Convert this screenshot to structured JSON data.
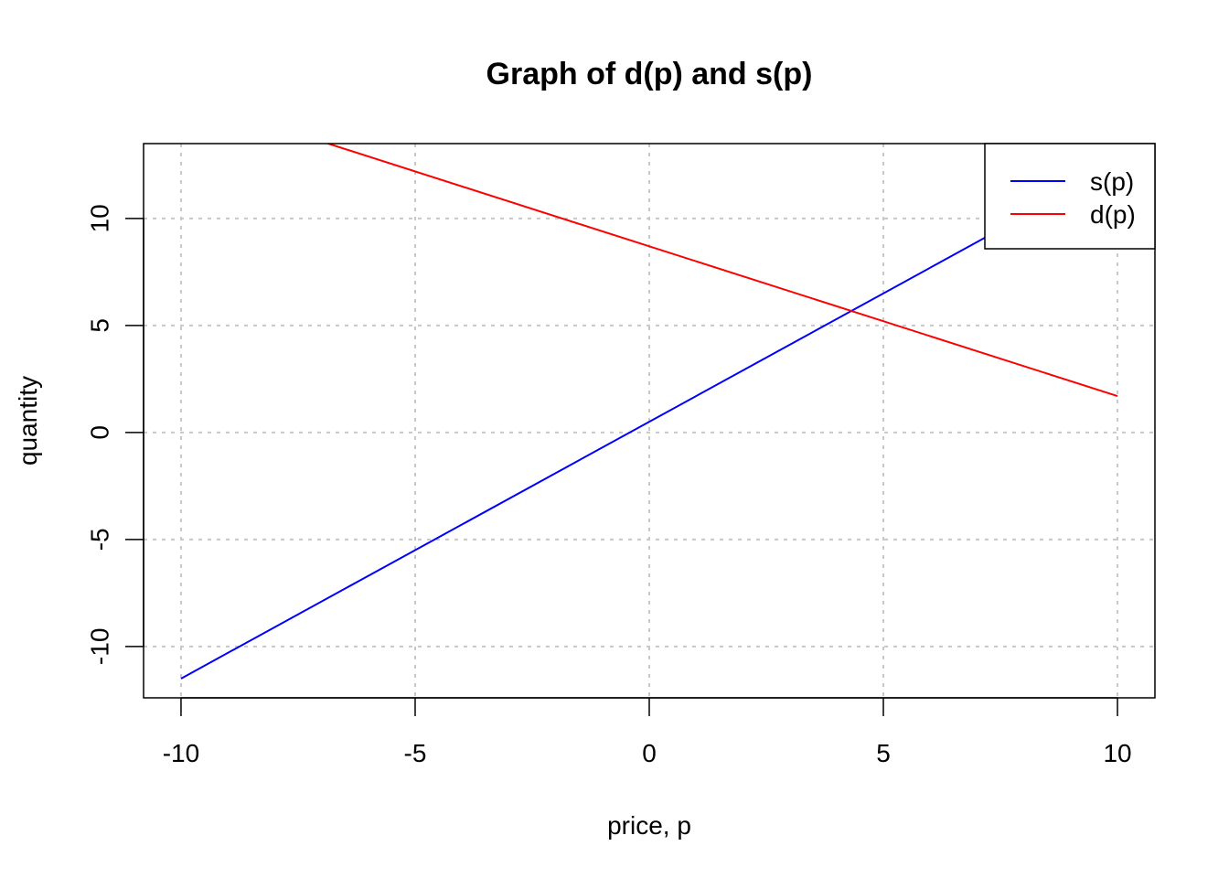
{
  "chart_data": {
    "type": "line",
    "title": "Graph of d(p) and s(p)",
    "xlabel": "price, p",
    "ylabel": "quantity",
    "xlim": [
      -10.8,
      10.8
    ],
    "ylim": [
      -12.4,
      13.5
    ],
    "x_ticks": [
      -10,
      -5,
      0,
      5,
      10
    ],
    "x_tick_labels": [
      "-10",
      "-5",
      "0",
      "5",
      "10"
    ],
    "y_ticks": [
      -10,
      -5,
      0,
      5,
      10
    ],
    "y_tick_labels": [
      "-10",
      "-5",
      "0",
      "5",
      "10"
    ],
    "grid": true,
    "legend_position": "top-right",
    "series": [
      {
        "name": "s(p)",
        "color": "#0000ff",
        "x": [
          -10,
          10
        ],
        "y": [
          -11.5,
          12.5
        ]
      },
      {
        "name": "d(p)",
        "color": "#ff0000",
        "x": [
          -10,
          10
        ],
        "y": [
          15.7,
          1.7
        ]
      }
    ]
  }
}
